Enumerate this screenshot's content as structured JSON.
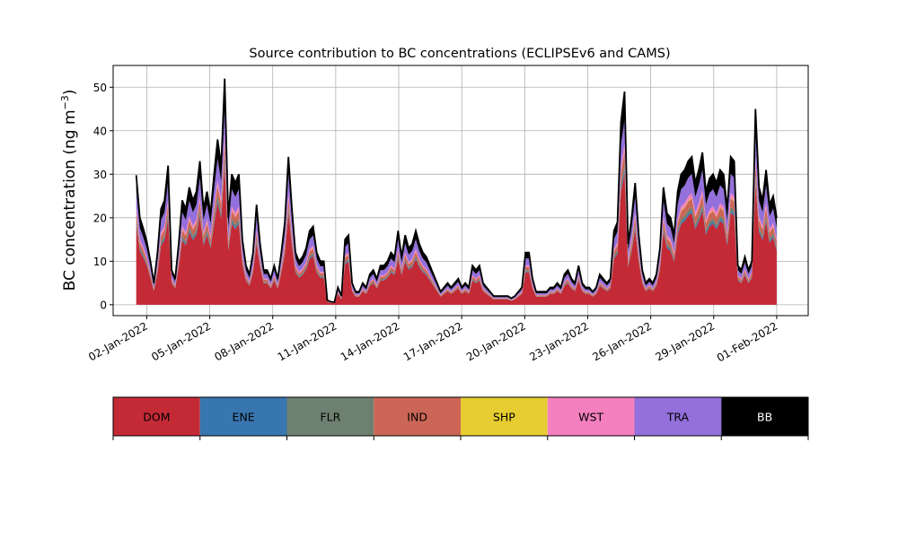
{
  "chart_data": {
    "type": "area",
    "stacked": true,
    "title": "Source contribution to BC concentrations (ECLIPSEv6 and CAMS)",
    "ylabel_main": "BC concentration (ng m",
    "ylabel_sup": "−3",
    "ylabel_close": ")",
    "xlabel": "",
    "ylim": [
      -2.5,
      55
    ],
    "grid": true,
    "x_start": "2022-01-01T12:00",
    "x_end": "2022-02-01",
    "xlim_days": [
      -0.6,
      32.5
    ],
    "yticks": [
      "0",
      "10",
      "20",
      "30",
      "40",
      "50"
    ],
    "ytick_values": [
      0,
      10,
      20,
      30,
      40,
      50
    ],
    "xticks": [
      {
        "label": "02-Jan-2022",
        "day": 1
      },
      {
        "label": "05-Jan-2022",
        "day": 4
      },
      {
        "label": "08-Jan-2022",
        "day": 7
      },
      {
        "label": "11-Jan-2022",
        "day": 10
      },
      {
        "label": "14-Jan-2022",
        "day": 13
      },
      {
        "label": "17-Jan-2022",
        "day": 16
      },
      {
        "label": "20-Jan-2022",
        "day": 19
      },
      {
        "label": "23-Jan-2022",
        "day": 22
      },
      {
        "label": "26-Jan-2022",
        "day": 25
      },
      {
        "label": "29-Jan-2022",
        "day": 28
      },
      {
        "label": "01-Feb-2022",
        "day": 31
      }
    ],
    "total": [
      29.8,
      20,
      17.5,
      14.5,
      10,
      5,
      12,
      22,
      24,
      32,
      8,
      6,
      14,
      24,
      22,
      27,
      24,
      26,
      33,
      22,
      26,
      21,
      30,
      38,
      32,
      52,
      20,
      30,
      28,
      30,
      15,
      9,
      7,
      12,
      23,
      14,
      8,
      8,
      6,
      9,
      6,
      12,
      19,
      34,
      22,
      12,
      10,
      11,
      13,
      17,
      18,
      12,
      10,
      10,
      1,
      0.7,
      0.6,
      4,
      2,
      15,
      16,
      5,
      3,
      3,
      5,
      4,
      7,
      8,
      6,
      9,
      9,
      10,
      12,
      11,
      17,
      11,
      16,
      13,
      14,
      17,
      14,
      12,
      11,
      9,
      7,
      5,
      3,
      4,
      5,
      4,
      5,
      6,
      4,
      5,
      4,
      9,
      8,
      9,
      5,
      4,
      3,
      2,
      2,
      2,
      2,
      2,
      1.5,
      2,
      3,
      4,
      12,
      12,
      6,
      3,
      3,
      3,
      3,
      4,
      4,
      5,
      4,
      7,
      8,
      6,
      5,
      9,
      5,
      4,
      4,
      3,
      4,
      7,
      6,
      5,
      6,
      17,
      19,
      42,
      49,
      14,
      20,
      28,
      16,
      8,
      5,
      6,
      5,
      7,
      13,
      27,
      21,
      20,
      16,
      26,
      30,
      31,
      33,
      34,
      28,
      31,
      35,
      26,
      29,
      30,
      28,
      31,
      30,
      22,
      34,
      33,
      9,
      8,
      11,
      8,
      10,
      45,
      27,
      24,
      31,
      23,
      25,
      20
    ]
  },
  "legend": [
    {
      "code": "DOM",
      "color": "#c42a36"
    },
    {
      "code": "ENE",
      "color": "#3876b0"
    },
    {
      "code": "FLR",
      "color": "#6e8070"
    },
    {
      "code": "IND",
      "color": "#cb6656"
    },
    {
      "code": "SHP",
      "color": "#e7cd31"
    },
    {
      "code": "WST",
      "color": "#f47fbf"
    },
    {
      "code": "TRA",
      "color": "#9370db"
    },
    {
      "code": "BB",
      "color": "#000000"
    }
  ]
}
